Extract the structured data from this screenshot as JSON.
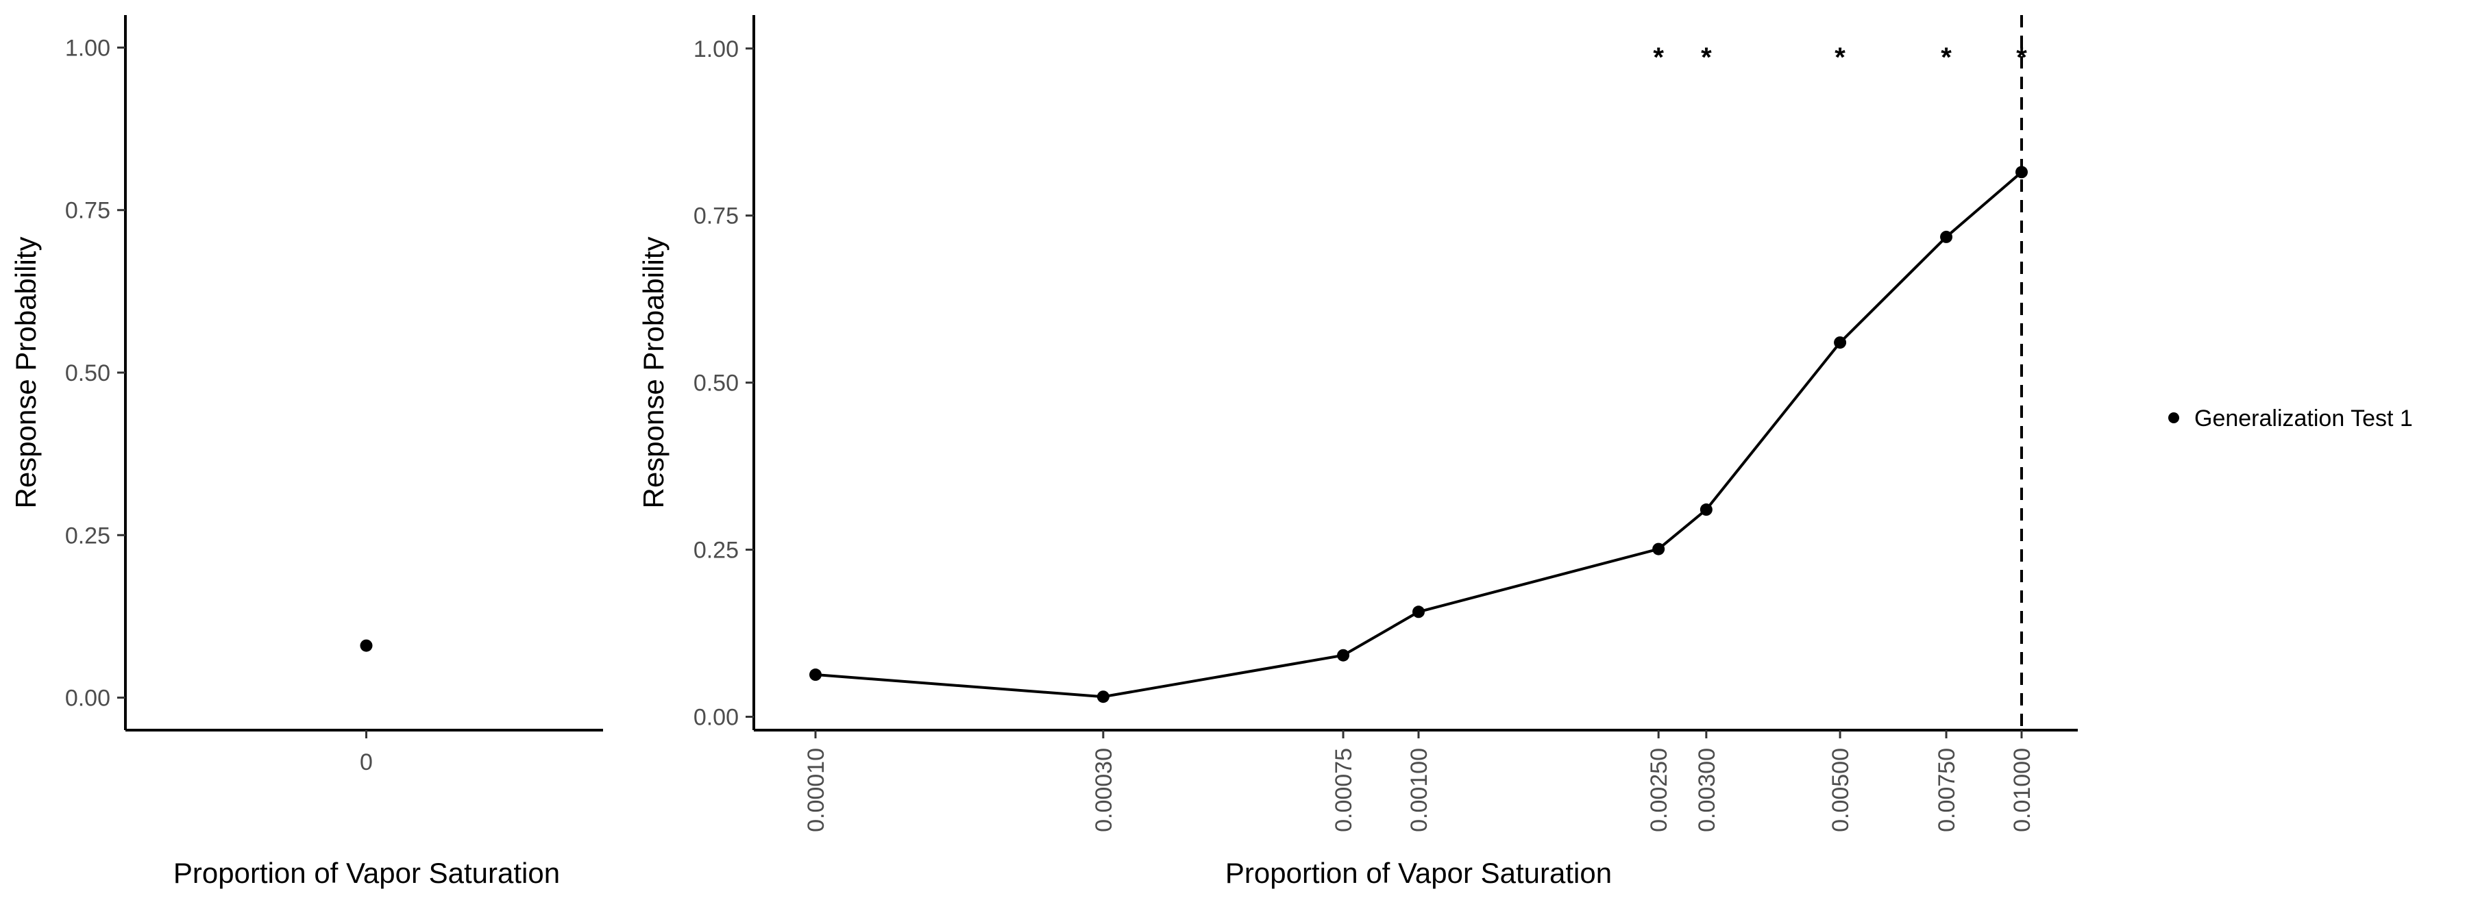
{
  "chart_data": [
    {
      "type": "scatter",
      "panel": "left",
      "categories": [
        "0"
      ],
      "series": [
        {
          "name": "Generalization Test 1",
          "x": [
            "0"
          ],
          "y": [
            0.08
          ]
        }
      ],
      "xlabel": "Proportion of Vapor Saturation",
      "ylabel": "Response Probability",
      "yticks": [
        "0.00",
        "0.25",
        "0.50",
        "0.75",
        "1.00"
      ],
      "ylim": [
        -0.05,
        1.05
      ],
      "grid": false
    },
    {
      "type": "line",
      "panel": "right",
      "categories": [
        "0.00010",
        "0.00030",
        "0.00075",
        "0.00100",
        "0.00250",
        "0.00300",
        "0.00500",
        "0.00750",
        "0.01000"
      ],
      "x": [
        0.0001,
        0.0003,
        0.00075,
        0.001,
        0.0025,
        0.003,
        0.005,
        0.0075,
        0.01
      ],
      "x_scale": "log",
      "series": [
        {
          "name": "Generalization Test 1",
          "y": [
            0.063,
            0.03,
            0.092,
            0.157,
            0.251,
            0.31,
            0.56,
            0.718,
            0.815
          ]
        }
      ],
      "annotations": [
        {
          "x": 0.0025,
          "y": 1.0,
          "text": "*"
        },
        {
          "x": 0.003,
          "y": 1.0,
          "text": "*"
        },
        {
          "x": 0.005,
          "y": 1.0,
          "text": "*"
        },
        {
          "x": 0.0075,
          "y": 1.0,
          "text": "*"
        },
        {
          "x": 0.01,
          "y": 1.0,
          "text": "*"
        }
      ],
      "vline": {
        "x": 0.01,
        "style": "dashed"
      },
      "xlabel": "Proportion of Vapor Saturation",
      "ylabel": "Response Probability",
      "yticks": [
        "0.00",
        "0.25",
        "0.50",
        "0.75",
        "1.00"
      ],
      "ylim": [
        -0.02,
        1.05
      ],
      "grid": false
    }
  ],
  "legend": {
    "placement": "right",
    "entries": [
      "Generalization Test 1"
    ]
  }
}
